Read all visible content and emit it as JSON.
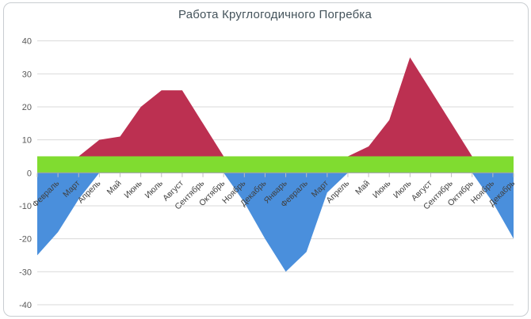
{
  "chart_data": {
    "type": "area",
    "title": "Работа Круглогодичного Погребка",
    "months": [
      "Январь",
      "Февраль",
      "Март",
      "Апрель",
      "Май",
      "Июнь",
      "Июль",
      "Август",
      "Сентябрь",
      "Октябрь",
      "Ноябрь",
      "Декабрь",
      "Январь",
      "Февраль",
      "Март",
      "Апрель",
      "Май",
      "Июнь",
      "Июль",
      "Август",
      "Сентябрь",
      "Октябрь",
      "Ноябрь",
      "Декабрь"
    ],
    "x_labels_visible": [
      "Февраль",
      "Март",
      "Апрель",
      "Май",
      "Июнь",
      "Июль",
      "Август",
      "Сентябрь",
      "Октябрь",
      "Ноябрь",
      "Декабрь",
      "Январь",
      "Февраль",
      "Март",
      "Апрель",
      "Май",
      "Июнь",
      "Июль",
      "Август",
      "Сентябрь",
      "Октябрь",
      "Ноябрь",
      "Декабрь"
    ],
    "first_category_label_hidden": true,
    "y_ticks": [
      40,
      30,
      20,
      10,
      0,
      -10,
      -20,
      -30,
      -40
    ],
    "ylim": [
      -40,
      40
    ],
    "grid": true,
    "legend": "none",
    "series": [
      {
        "name": "temperature-above-zero",
        "color": "#bc3051",
        "values": [
          0,
          0,
          5,
          10,
          11,
          20,
          25,
          25,
          15,
          5,
          0,
          0,
          0,
          0,
          0,
          5,
          8,
          16,
          35,
          25,
          15,
          5,
          0,
          0
        ]
      },
      {
        "name": "cellar-zone-band",
        "color": "#80dc30",
        "band_min": 0,
        "band_max": 5
      },
      {
        "name": "temperature-below-zero",
        "color": "#4a8fdc",
        "values": [
          -25,
          -18,
          -8,
          0,
          0,
          0,
          0,
          0,
          0,
          0,
          -9,
          -20,
          -30,
          -24,
          -6,
          0,
          0,
          0,
          0,
          0,
          0,
          0,
          -9,
          -20
        ]
      }
    ]
  },
  "style_colors": {
    "gridline": "#d9d9d9",
    "axis_line": "#9da3a8",
    "tick": "#bfbfbf",
    "x_label": "#404040",
    "y_label": "#595959",
    "title": "#44535b",
    "frame_border": "#c9cdd1"
  }
}
